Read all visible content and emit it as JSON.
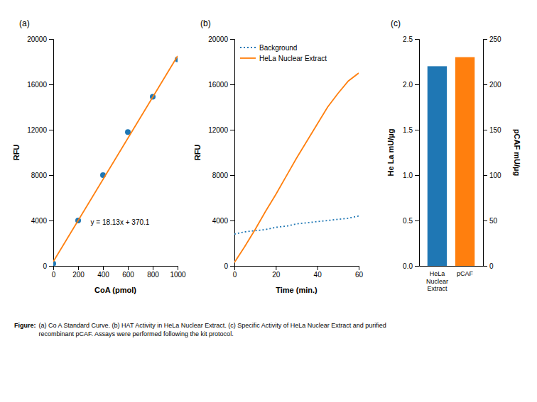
{
  "chart_data": [
    {
      "type": "scatter",
      "title": "(a)",
      "xlabel": "CoA (pmol)",
      "ylabel": "RFU",
      "xlim": [
        0,
        1000
      ],
      "ylim": [
        0,
        20000
      ],
      "xticks": [
        0,
        200,
        400,
        600,
        800,
        1000
      ],
      "yticks": [
        0,
        4000,
        8000,
        12000,
        16000,
        20000
      ],
      "annotations": [
        "y = 18.13x + 370.1"
      ],
      "series": [
        {
          "type": "scatter",
          "marker": "circle",
          "x": [
            0,
            200,
            400,
            600,
            800,
            1000
          ],
          "values": [
            200,
            4000,
            8000,
            11800,
            14900,
            18200
          ]
        },
        {
          "type": "line",
          "line_style": "solid",
          "x": [
            0,
            1000
          ],
          "values": [
            370.1,
            18500.1
          ]
        }
      ]
    },
    {
      "type": "line",
      "title": "(b)",
      "xlabel": "Time (min.)",
      "ylabel": "RFU",
      "xlim": [
        0,
        60
      ],
      "ylim": [
        0,
        20000
      ],
      "xticks": [
        0,
        20,
        40,
        60
      ],
      "yticks": [
        0,
        4000,
        8000,
        12000,
        16000,
        20000
      ],
      "legend": "upper left",
      "x": [
        0,
        5,
        10,
        15,
        20,
        25,
        30,
        35,
        40,
        45,
        50,
        55,
        60
      ],
      "series": [
        {
          "name": "Background",
          "line_style": "dotted",
          "values": [
            2800,
            3000,
            3100,
            3200,
            3400,
            3500,
            3700,
            3800,
            3900,
            4000,
            4100,
            4200,
            4400
          ]
        },
        {
          "name": "HeLa Nuclear Extract",
          "line_style": "solid",
          "values": [
            300,
            1700,
            3200,
            4800,
            6300,
            7900,
            9500,
            11000,
            12500,
            14000,
            15200,
            16300,
            17000
          ]
        }
      ]
    },
    {
      "type": "bar",
      "title": "(c)",
      "ylabel": "He La mU/µg",
      "y2label": "pCAF mU/µg",
      "categories": [
        "HeLa\nNuclear\nExtract",
        "pCAF"
      ],
      "ylim": [
        0,
        2.5
      ],
      "yticks": [
        {
          "value": 0,
          "label": "0.0"
        },
        0.5,
        {
          "value": 1,
          "label": "1.0"
        },
        1.5,
        {
          "value": 2,
          "label": "2.0"
        },
        2.5
      ],
      "y2lim": [
        0,
        250
      ],
      "y2ticks": [
        0,
        50,
        100,
        150,
        200,
        250
      ],
      "series": [
        {
          "values": [
            2.2,
            null
          ]
        },
        {
          "values": [
            null,
            230
          ],
          "axis": "y2"
        }
      ]
    }
  ],
  "caption_lead": "Figure:",
  "caption": "(a) Co A Standard Curve. (b) HAT Activity in HeLa Nuclear Extract. (c) Specific Activity of HeLa Nuclear Extract and purified\nrecombinant pCAF. Assays were performed following the kit protocol."
}
